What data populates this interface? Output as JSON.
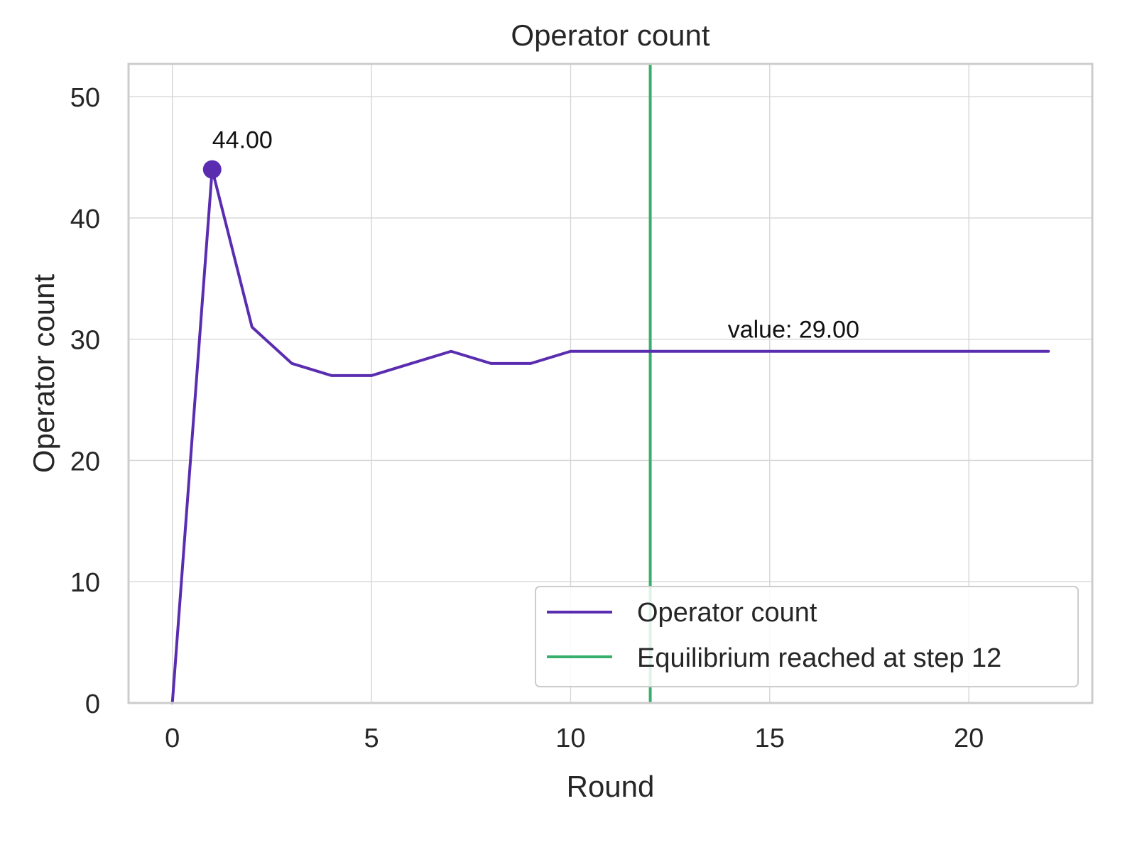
{
  "chart_data": {
    "type": "line",
    "title": "Operator count",
    "xlabel": "Round",
    "ylabel": "Operator count",
    "xlim": [
      -1.1,
      23.1
    ],
    "ylim": [
      0,
      52.7
    ],
    "xticks": [
      0,
      5,
      10,
      15,
      20
    ],
    "yticks": [
      0,
      10,
      20,
      30,
      40,
      50
    ],
    "grid": true,
    "legend_position": "lower-right",
    "series": [
      {
        "name": "Operator count",
        "color": "#5a2db0",
        "x": [
          0,
          1,
          2,
          3,
          4,
          5,
          6,
          7,
          8,
          9,
          10,
          11,
          12,
          13,
          14,
          15,
          16,
          17,
          18,
          19,
          20,
          21,
          22
        ],
        "y": [
          0,
          44,
          31,
          28,
          27,
          27,
          28,
          29,
          28,
          28,
          29,
          29,
          29,
          29,
          29,
          29,
          29,
          29,
          29,
          29,
          29,
          29,
          29
        ]
      }
    ],
    "vlines": [
      {
        "name": "Equilibrium reached at step 12",
        "x": 12,
        "color": "#3aaf6d"
      }
    ],
    "annotations": [
      {
        "text": "44.00",
        "x": 1,
        "y": 44,
        "marker": true,
        "color": "#5a2db0"
      },
      {
        "text": "value: 29.00",
        "x": 14,
        "y": 29
      }
    ]
  }
}
